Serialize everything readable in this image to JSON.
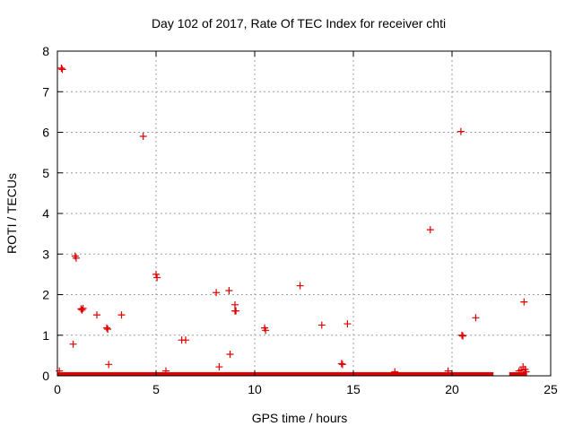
{
  "chart_data": {
    "type": "scatter",
    "title": "Day 102 of 2017, Rate Of TEC Index for receiver chti",
    "xlabel": "GPS time / hours",
    "ylabel": "ROTI / TECUs",
    "xlim": [
      0,
      25
    ],
    "ylim": [
      0,
      8
    ],
    "xticks": [
      "0",
      "5",
      "10",
      "15",
      "20",
      "25"
    ],
    "yticks": [
      "0",
      "1",
      "2",
      "3",
      "4",
      "5",
      "6",
      "7",
      "8"
    ],
    "grid": true,
    "legend": "none",
    "marker": "+",
    "series_color": "#e00000",
    "baseline_band": {
      "segments": [
        [
          0,
          22.1
        ],
        [
          22.9,
          23.8
        ]
      ],
      "y_max": 0.09
    },
    "series": [
      {
        "points": [
          [
            0.2,
            7.58
          ],
          [
            0.25,
            7.55
          ],
          [
            4.35,
            5.9
          ],
          [
            20.45,
            6.02
          ],
          [
            18.9,
            3.6
          ],
          [
            0.9,
            2.95
          ],
          [
            0.95,
            2.9
          ],
          [
            5.0,
            2.5
          ],
          [
            5.05,
            2.42
          ],
          [
            8.05,
            2.05
          ],
          [
            8.7,
            2.1
          ],
          [
            12.3,
            2.22
          ],
          [
            1.2,
            1.65
          ],
          [
            1.25,
            1.62
          ],
          [
            1.3,
            1.66
          ],
          [
            9.0,
            1.75
          ],
          [
            9.05,
            1.6
          ],
          [
            9.0,
            1.6
          ],
          [
            23.65,
            1.82
          ],
          [
            2.0,
            1.5
          ],
          [
            3.25,
            1.5
          ],
          [
            21.2,
            1.43
          ],
          [
            0.8,
            0.78
          ],
          [
            6.3,
            0.88
          ],
          [
            6.5,
            0.88
          ],
          [
            2.5,
            1.18
          ],
          [
            2.55,
            1.15
          ],
          [
            10.5,
            1.18
          ],
          [
            10.55,
            1.12
          ],
          [
            13.4,
            1.25
          ],
          [
            14.7,
            1.28
          ],
          [
            20.5,
            1.0
          ],
          [
            20.55,
            0.98
          ],
          [
            8.75,
            0.53
          ],
          [
            2.6,
            0.28
          ],
          [
            14.4,
            0.3
          ],
          [
            14.45,
            0.28
          ],
          [
            8.2,
            0.22
          ],
          [
            23.6,
            0.22
          ],
          [
            23.7,
            0.16
          ],
          [
            0.1,
            0.12
          ],
          [
            5.5,
            0.12
          ],
          [
            17.1,
            0.1
          ],
          [
            19.8,
            0.12
          ],
          [
            23.4,
            0.12
          ],
          [
            23.75,
            0.1
          ],
          [
            23.5,
            0.14
          ]
        ]
      }
    ]
  }
}
